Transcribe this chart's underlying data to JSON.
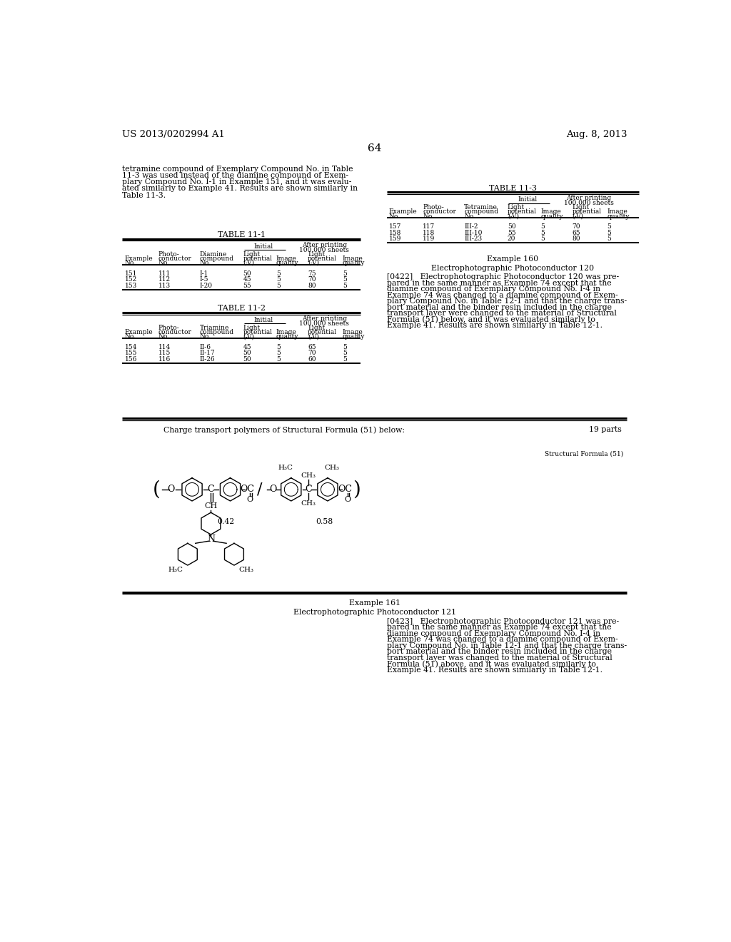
{
  "bg_color": "#ffffff",
  "header_left": "US 2013/0202994 A1",
  "header_right": "Aug. 8, 2013",
  "page_number": "64",
  "intro_text": [
    "tetramine compound of Exemplary Compound No. in Table",
    "11-3 was used instead of the diamine compound of Exem-",
    "plary Compound No. I-1 in Example 151, and it was evalu-",
    "ated similarly to Example 41. Results are shown similarly in",
    "Table 11-3."
  ],
  "table11_1_title": "TABLE 11-1",
  "table11_1_data": [
    [
      "151",
      "111",
      "I-1",
      "50",
      "5",
      "75",
      "5"
    ],
    [
      "152",
      "112",
      "I-5",
      "45",
      "5",
      "70",
      "5"
    ],
    [
      "153",
      "113",
      "I-20",
      "55",
      "5",
      "80",
      "5"
    ]
  ],
  "table11_2_title": "TABLE 11-2",
  "table11_2_col3": "Triamine",
  "table11_2_data": [
    [
      "154",
      "114",
      "II-6",
      "45",
      "5",
      "65",
      "5"
    ],
    [
      "155",
      "115",
      "II-17",
      "50",
      "5",
      "70",
      "5"
    ],
    [
      "156",
      "116",
      "II-26",
      "50",
      "5",
      "60",
      "5"
    ]
  ],
  "table11_3_title": "TABLE 11-3",
  "table11_3_col3": "Tetramine",
  "table11_3_data": [
    [
      "157",
      "117",
      "III-2",
      "50",
      "5",
      "70",
      "5"
    ],
    [
      "158",
      "118",
      "III-10",
      "55",
      "5",
      "65",
      "5"
    ],
    [
      "159",
      "119",
      "III-23",
      "20",
      "5",
      "80",
      "5"
    ]
  ],
  "example160_title": "Example 160",
  "example160_subtitle1": "Electrophotographic Photoconductor ",
  "example160_subtitle2": "120",
  "example160_text": [
    "[0422]   Electrophotographic Photoconductor 120 was pre-",
    "pared in the same manner as Example 74 except that the",
    "diamine compound of Exemplary Compound No. I-4 in",
    "Example 74 was changed to a diamine compound of Exem-",
    "plary Compound No. in Table 12-1 and that the charge trans-",
    "port material and the binder resin included in the charge",
    "transport layer were changed to the material of Structural",
    "Formula (51) below, and it was evaluated similarly to",
    "Example 41. Results are shown similarly in Table 12-1."
  ],
  "sf_label": "Charge transport polymers of Structural Formula (51) below:",
  "sf_parts": "19 parts",
  "sf_name": "Structural Formula (51)",
  "ratio_left": "0.42",
  "ratio_right": "0.58",
  "example161_title": "Example 161",
  "example161_subtitle1": "Electrophotographic Photoconductor ",
  "example161_subtitle2": "121",
  "example161_text": [
    "[0423]   Electrophotographic Photoconductor 121 was pre-",
    "pared in the same manner as Example 74 except that the",
    "diamine compound of Exemplary Compound No. I-4 in",
    "Example 74 was changed to a diamine compound of Exem-",
    "plary Compound No. in Table 12-1 and that the charge trans-",
    "port material and the binder resin included in the charge",
    "transport layer was changed to the material of Structural",
    "Formula (51) above, and it was evaluated similarly to",
    "Example 41. Results are shown similarly in Table 12-1."
  ]
}
